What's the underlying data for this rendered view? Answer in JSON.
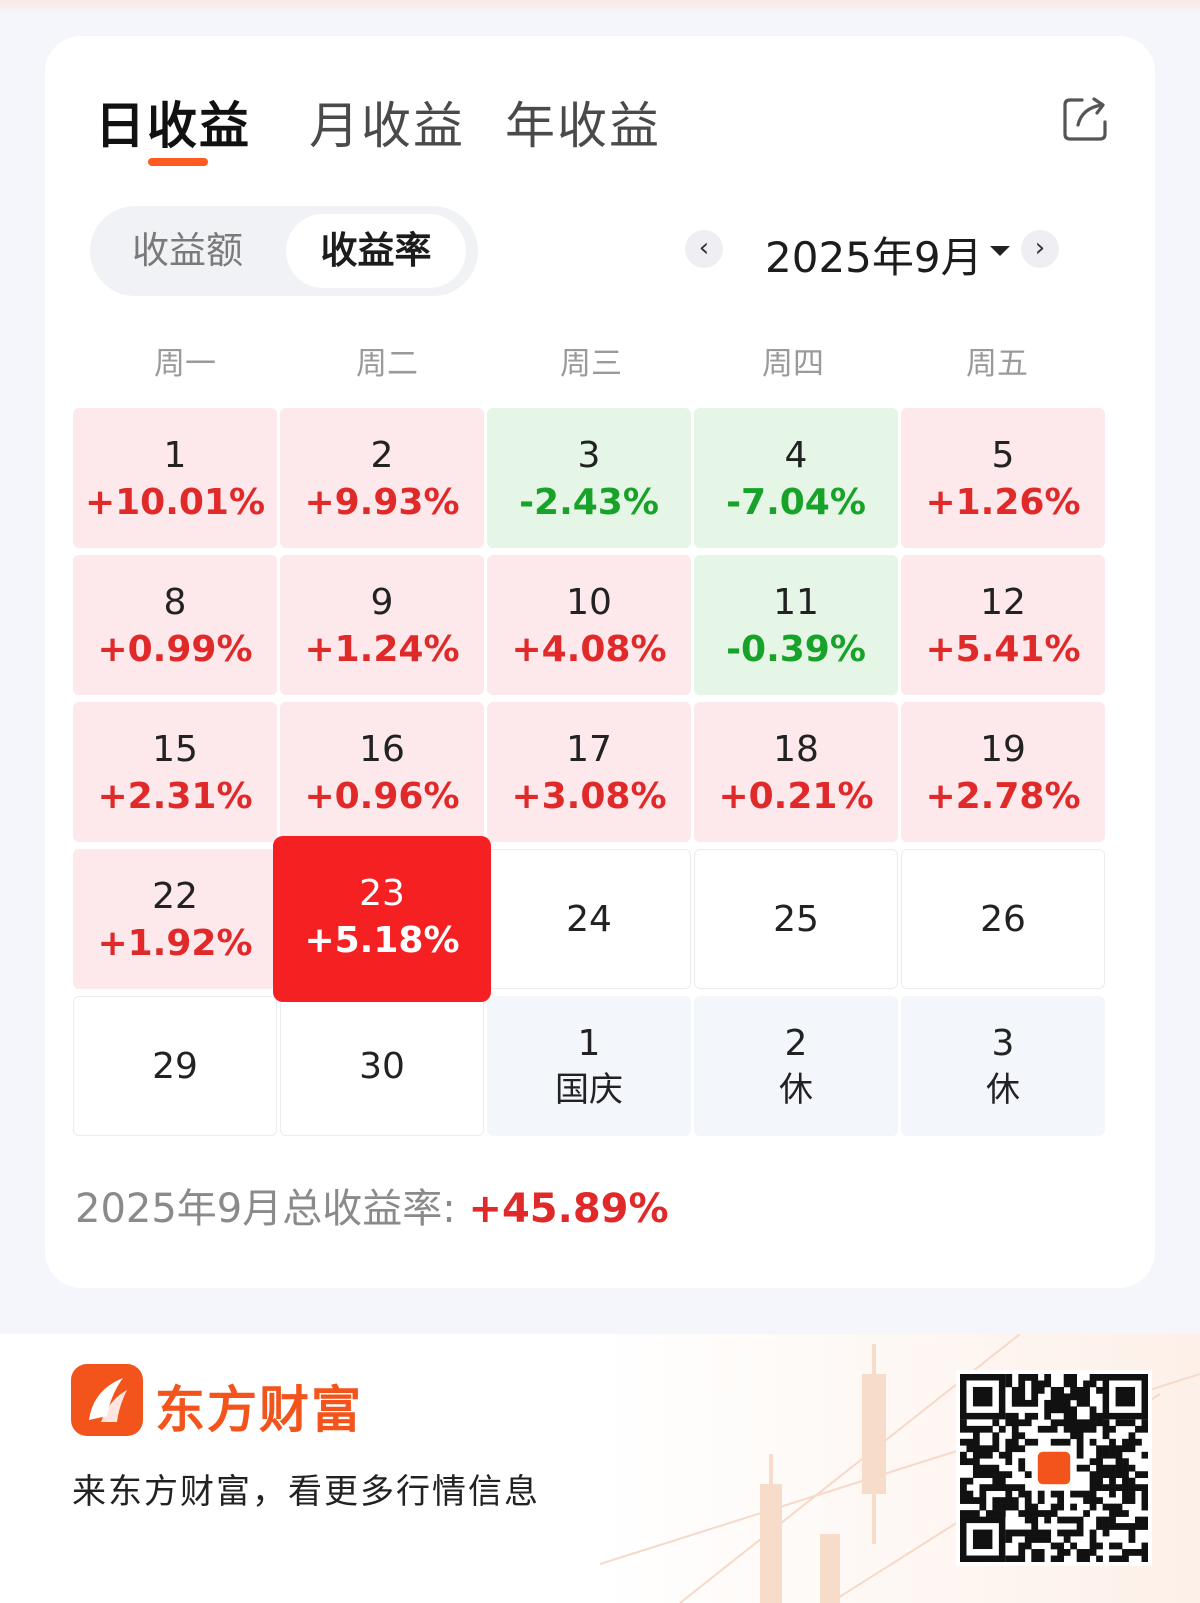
{
  "tabs": {
    "items": [
      {
        "label": "日收益",
        "active": true
      },
      {
        "label": "月收益",
        "active": false
      },
      {
        "label": "年收益",
        "active": false
      }
    ]
  },
  "segment": {
    "items": [
      {
        "label": "收益额",
        "active": false
      },
      {
        "label": "收益率",
        "active": true
      }
    ]
  },
  "month_picker": {
    "prev_icon": "‹",
    "next_icon": "›",
    "label": "2025年9月"
  },
  "weekdays": [
    "周一",
    "周二",
    "周三",
    "周四",
    "周五"
  ],
  "calendar": {
    "weeks": [
      [
        {
          "day": "1",
          "value": "+10.01%",
          "trend": "up"
        },
        {
          "day": "2",
          "value": "+9.93%",
          "trend": "up"
        },
        {
          "day": "3",
          "value": "-2.43%",
          "trend": "down"
        },
        {
          "day": "4",
          "value": "-7.04%",
          "trend": "down"
        },
        {
          "day": "5",
          "value": "+1.26%",
          "trend": "up"
        }
      ],
      [
        {
          "day": "8",
          "value": "+0.99%",
          "trend": "up"
        },
        {
          "day": "9",
          "value": "+1.24%",
          "trend": "up"
        },
        {
          "day": "10",
          "value": "+4.08%",
          "trend": "up"
        },
        {
          "day": "11",
          "value": "-0.39%",
          "trend": "down"
        },
        {
          "day": "12",
          "value": "+5.41%",
          "trend": "up"
        }
      ],
      [
        {
          "day": "15",
          "value": "+2.31%",
          "trend": "up"
        },
        {
          "day": "16",
          "value": "+0.96%",
          "trend": "up"
        },
        {
          "day": "17",
          "value": "+3.08%",
          "trend": "up"
        },
        {
          "day": "18",
          "value": "+0.21%",
          "trend": "up"
        },
        {
          "day": "19",
          "value": "+2.78%",
          "trend": "up"
        }
      ],
      [
        {
          "day": "22",
          "value": "+1.92%",
          "trend": "up"
        },
        {
          "day": "23",
          "value": "+5.18%",
          "trend": "today"
        },
        {
          "day": "24",
          "value": "",
          "trend": "empty"
        },
        {
          "day": "25",
          "value": "",
          "trend": "empty"
        },
        {
          "day": "26",
          "value": "",
          "trend": "empty"
        }
      ],
      [
        {
          "day": "29",
          "value": "",
          "trend": "empty"
        },
        {
          "day": "30",
          "value": "",
          "trend": "empty"
        },
        {
          "day": "1",
          "note": "国庆",
          "trend": "holiday"
        },
        {
          "day": "2",
          "note": "休",
          "trend": "holiday"
        },
        {
          "day": "3",
          "note": "休",
          "trend": "holiday"
        }
      ]
    ]
  },
  "summary": {
    "label": "2025年9月总收益率: ",
    "value": "+45.89%"
  },
  "footer": {
    "brand": "东方财富",
    "slogan": "来东方财富，看更多行情信息"
  },
  "colors": {
    "accent": "#ff5a1f",
    "up": "#e02a2a",
    "down": "#18a22a",
    "today": "#f42021",
    "brand": "#f2541b"
  }
}
